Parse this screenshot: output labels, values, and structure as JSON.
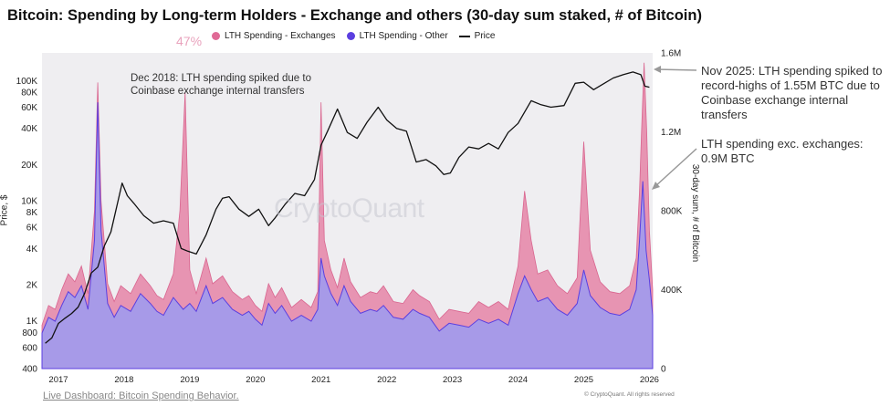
{
  "chart_data": {
    "type": "area",
    "title": "Bitcoin: Spending by Long-term Holders - Exchange and others (30-day sum staked, # of Bitcoin)",
    "badge_text": "47%",
    "legend": [
      {
        "name": "LTH Spending - Exchanges",
        "color": "#e06a96"
      },
      {
        "name": "LTH Spending - Other",
        "color": "#5b3fe0"
      },
      {
        "name": "Price",
        "color": "#111111"
      }
    ],
    "y_left_label": "Price, $",
    "y_left_scale": "log",
    "y_left_range": [
      400,
      170000
    ],
    "y_left_ticks": [
      {
        "value": 400,
        "label": "400"
      },
      {
        "value": 600,
        "label": "600"
      },
      {
        "value": 800,
        "label": "800"
      },
      {
        "value": 1000,
        "label": "1K"
      },
      {
        "value": 2000,
        "label": "2K"
      },
      {
        "value": 4000,
        "label": "4K"
      },
      {
        "value": 6000,
        "label": "6K"
      },
      {
        "value": 8000,
        "label": "8K"
      },
      {
        "value": 10000,
        "label": "10K"
      },
      {
        "value": 20000,
        "label": "20K"
      },
      {
        "value": 40000,
        "label": "40K"
      },
      {
        "value": 60000,
        "label": "60K"
      },
      {
        "value": 80000,
        "label": "80K"
      },
      {
        "value": 100000,
        "label": "100K"
      }
    ],
    "y_right_label": "30-day sum, # of Bitcoin",
    "y_right_range": [
      0,
      1600000
    ],
    "y_right_ticks": [
      {
        "value": 0,
        "label": "0"
      },
      {
        "value": 400000,
        "label": "400K"
      },
      {
        "value": 800000,
        "label": "800K"
      },
      {
        "value": 1200000,
        "label": "1.2M"
      },
      {
        "value": 1600000,
        "label": "1.6M"
      }
    ],
    "x_range": [
      2016.75,
      2026.05
    ],
    "x_ticks": [
      {
        "value": 2017,
        "label": "2017"
      },
      {
        "value": 2018,
        "label": "2018"
      },
      {
        "value": 2019,
        "label": "2019"
      },
      {
        "value": 2020,
        "label": "2020"
      },
      {
        "value": 2021,
        "label": "2021"
      },
      {
        "value": 2022,
        "label": "2022"
      },
      {
        "value": 2023,
        "label": "2023"
      },
      {
        "value": 2024,
        "label": "2024"
      },
      {
        "value": 2025,
        "label": "2025"
      },
      {
        "value": 2026,
        "label": "2026"
      }
    ],
    "series": [
      {
        "name": "Price",
        "axis": "left",
        "x": [
          2016.8,
          2016.9,
          2017.0,
          2017.1,
          2017.2,
          2017.3,
          2017.4,
          2017.5,
          2017.6,
          2017.7,
          2017.8,
          2017.9,
          2017.97,
          2018.05,
          2018.15,
          2018.3,
          2018.45,
          2018.6,
          2018.75,
          2018.87,
          2018.97,
          2019.1,
          2019.25,
          2019.4,
          2019.5,
          2019.6,
          2019.75,
          2019.9,
          2020.05,
          2020.2,
          2020.3,
          2020.45,
          2020.6,
          2020.75,
          2020.9,
          2021.0,
          2021.1,
          2021.25,
          2021.4,
          2021.55,
          2021.7,
          2021.87,
          2022.0,
          2022.15,
          2022.3,
          2022.45,
          2022.6,
          2022.75,
          2022.87,
          2022.97,
          2023.1,
          2023.25,
          2023.4,
          2023.55,
          2023.7,
          2023.85,
          2024.0,
          2024.2,
          2024.35,
          2024.5,
          2024.7,
          2024.87,
          2025.0,
          2025.15,
          2025.3,
          2025.45,
          2025.6,
          2025.75,
          2025.87,
          2025.93,
          2026.0
        ],
        "y": [
          650,
          720,
          950,
          1050,
          1150,
          1300,
          1700,
          2500,
          2800,
          4200,
          5500,
          9500,
          14000,
          11000,
          9500,
          7500,
          6500,
          6800,
          6500,
          4000,
          3800,
          3600,
          5200,
          8500,
          10500,
          10800,
          8500,
          7400,
          8500,
          6200,
          7200,
          9300,
          11500,
          11000,
          15000,
          29000,
          38000,
          58000,
          37000,
          33000,
          45000,
          60000,
          47000,
          40000,
          38000,
          21000,
          22000,
          19500,
          16500,
          17000,
          23000,
          28000,
          27000,
          30000,
          27000,
          37000,
          44000,
          68000,
          63000,
          60000,
          62000,
          95000,
          97000,
          84000,
          94000,
          105000,
          112000,
          118000,
          112000,
          90000,
          88000
        ]
      },
      {
        "name": "LTH Spending - Other",
        "axis": "right",
        "x": [
          2016.75,
          2016.85,
          2016.95,
          2017.05,
          2017.15,
          2017.25,
          2017.35,
          2017.45,
          2017.55,
          2017.6,
          2017.65,
          2017.75,
          2017.85,
          2017.95,
          2018.1,
          2018.25,
          2018.4,
          2018.5,
          2018.6,
          2018.75,
          2018.9,
          2019.0,
          2019.1,
          2019.25,
          2019.35,
          2019.5,
          2019.65,
          2019.8,
          2019.9,
          2020.0,
          2020.1,
          2020.2,
          2020.3,
          2020.4,
          2020.55,
          2020.7,
          2020.85,
          2020.95,
          2021.0,
          2021.05,
          2021.15,
          2021.25,
          2021.35,
          2021.45,
          2021.6,
          2021.75,
          2021.85,
          2021.95,
          2022.1,
          2022.25,
          2022.4,
          2022.5,
          2022.65,
          2022.8,
          2022.95,
          2023.1,
          2023.25,
          2023.4,
          2023.55,
          2023.7,
          2023.85,
          2024.0,
          2024.1,
          2024.2,
          2024.3,
          2024.45,
          2024.6,
          2024.75,
          2024.9,
          2025.0,
          2025.1,
          2025.25,
          2025.4,
          2025.55,
          2025.7,
          2025.8,
          2025.85,
          2025.9,
          2025.95,
          2026.0,
          2026.05
        ],
        "y": [
          180000,
          260000,
          240000,
          320000,
          390000,
          360000,
          420000,
          300000,
          650000,
          1350000,
          700000,
          330000,
          260000,
          320000,
          290000,
          380000,
          330000,
          290000,
          270000,
          360000,
          300000,
          330000,
          290000,
          420000,
          330000,
          360000,
          300000,
          270000,
          290000,
          250000,
          220000,
          330000,
          280000,
          320000,
          240000,
          270000,
          240000,
          300000,
          560000,
          470000,
          380000,
          320000,
          420000,
          340000,
          280000,
          300000,
          290000,
          320000,
          260000,
          250000,
          300000,
          280000,
          260000,
          190000,
          230000,
          220000,
          210000,
          250000,
          230000,
          250000,
          220000,
          380000,
          470000,
          400000,
          340000,
          360000,
          300000,
          270000,
          330000,
          500000,
          370000,
          310000,
          280000,
          270000,
          300000,
          400000,
          650000,
          950000,
          600000,
          450000,
          270000
        ]
      },
      {
        "name": "LTH Spending - Exchanges",
        "axis": "right",
        "x": [
          2016.75,
          2016.85,
          2016.95,
          2017.05,
          2017.15,
          2017.25,
          2017.35,
          2017.45,
          2017.55,
          2017.6,
          2017.65,
          2017.75,
          2017.85,
          2017.95,
          2018.1,
          2018.25,
          2018.4,
          2018.5,
          2018.6,
          2018.75,
          2018.85,
          2018.93,
          2019.0,
          2019.1,
          2019.25,
          2019.35,
          2019.5,
          2019.65,
          2019.8,
          2019.9,
          2020.0,
          2020.1,
          2020.2,
          2020.3,
          2020.4,
          2020.55,
          2020.7,
          2020.85,
          2020.95,
          2021.0,
          2021.05,
          2021.15,
          2021.25,
          2021.35,
          2021.45,
          2021.6,
          2021.75,
          2021.85,
          2021.95,
          2022.1,
          2022.25,
          2022.4,
          2022.5,
          2022.65,
          2022.8,
          2022.95,
          2023.1,
          2023.25,
          2023.4,
          2023.55,
          2023.7,
          2023.85,
          2024.0,
          2024.1,
          2024.2,
          2024.3,
          2024.45,
          2024.6,
          2024.75,
          2024.9,
          2025.0,
          2025.1,
          2025.25,
          2025.4,
          2025.55,
          2025.7,
          2025.8,
          2025.85,
          2025.88,
          2025.92,
          2025.96,
          2026.0,
          2026.05
        ],
        "y": [
          220000,
          320000,
          300000,
          400000,
          480000,
          440000,
          520000,
          380000,
          800000,
          1450000,
          850000,
          430000,
          340000,
          420000,
          380000,
          480000,
          420000,
          370000,
          350000,
          480000,
          800000,
          1400000,
          500000,
          380000,
          560000,
          430000,
          470000,
          390000,
          350000,
          370000,
          320000,
          290000,
          430000,
          360000,
          410000,
          310000,
          350000,
          310000,
          390000,
          1350000,
          650000,
          500000,
          410000,
          560000,
          440000,
          360000,
          390000,
          380000,
          420000,
          340000,
          330000,
          400000,
          370000,
          340000,
          250000,
          300000,
          290000,
          280000,
          340000,
          310000,
          340000,
          300000,
          520000,
          900000,
          650000,
          480000,
          500000,
          420000,
          380000,
          460000,
          1150000,
          600000,
          440000,
          390000,
          380000,
          420000,
          560000,
          900000,
          1200000,
          1550000,
          1200000,
          700000,
          400000
        ]
      }
    ],
    "annotations": {
      "dec2018": "Dec 2018: LTH spending spiked due to Coinbase exchange internal transfers",
      "nov2025": "Nov 2025: LTH spending spiked to record-highs of 1.55M BTC due to Coinbase exchange internal transfers",
      "exc": "LTH spending exc. exchanges: 0.9M BTC"
    },
    "watermark": "CryptoQuant",
    "footer_link": "Live Dashboard: Bitcoin Spending Behavior.",
    "copyright": "© CryptoQuant. All rights reserved"
  }
}
